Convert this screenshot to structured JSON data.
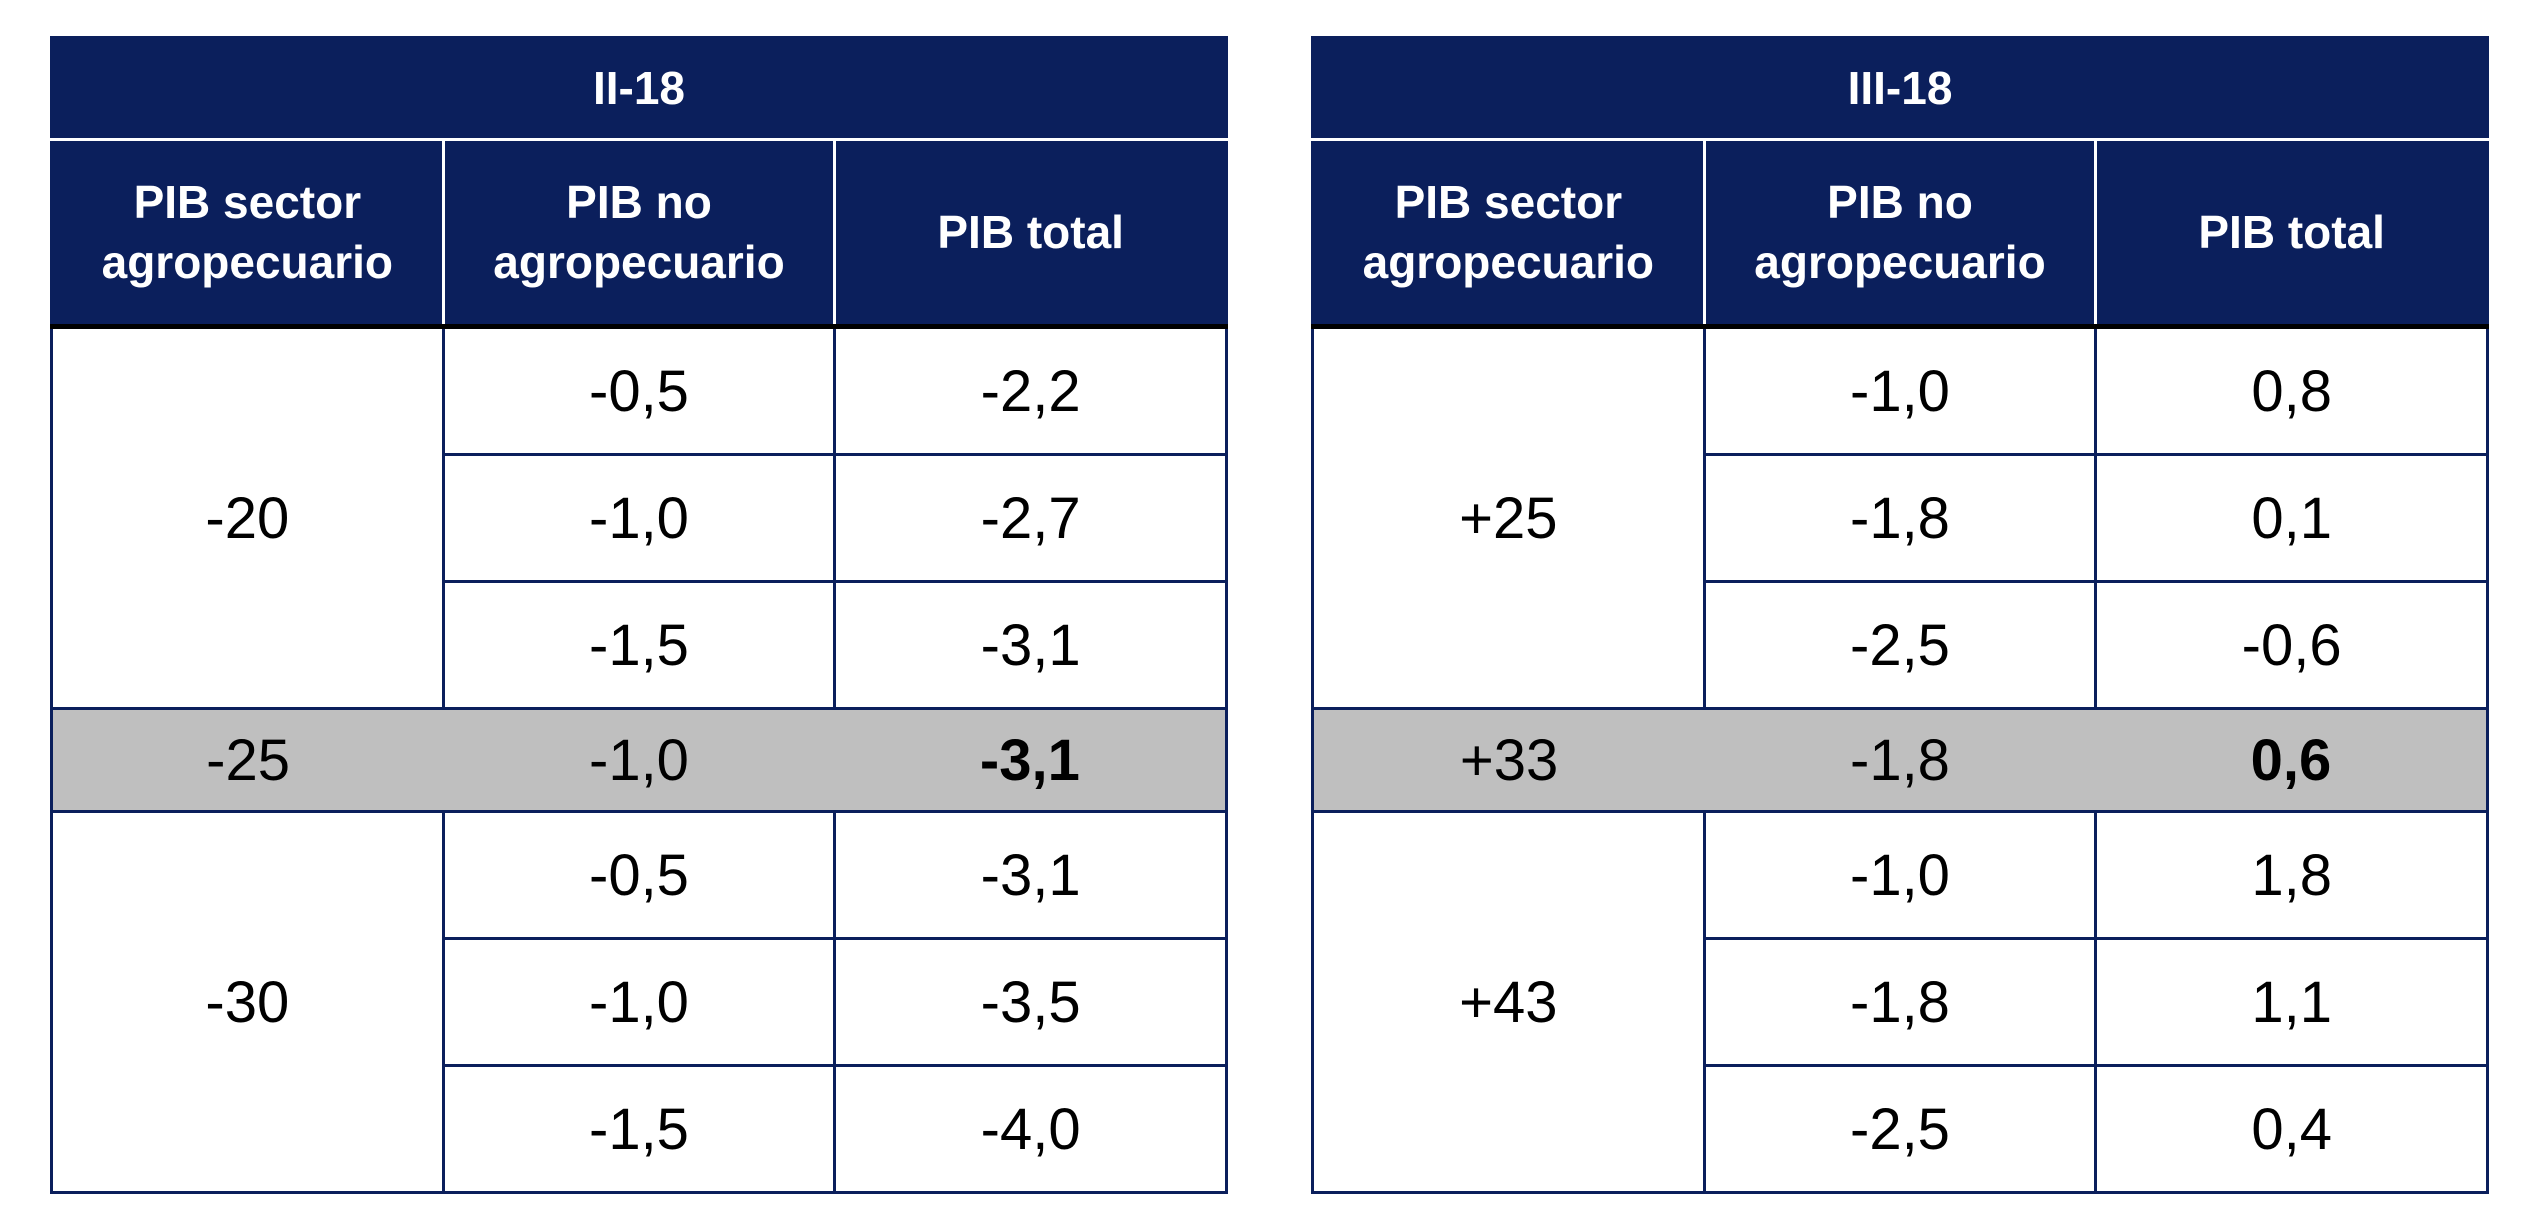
{
  "tables": [
    {
      "title": "II-18",
      "headers": [
        "PIB sector agropecuario",
        "PIB no agropecuario",
        "PIB total"
      ],
      "groups": [
        {
          "sector": "-20",
          "highlight": false,
          "rows": [
            [
              "-0,5",
              "-2,2"
            ],
            [
              "-1,0",
              "-2,7"
            ],
            [
              "-1,5",
              "-3,1"
            ]
          ]
        },
        {
          "sector": "-25",
          "highlight": true,
          "rows": [
            [
              "-1,0",
              "-3,1"
            ]
          ]
        },
        {
          "sector": "-30",
          "highlight": false,
          "rows": [
            [
              "-0,5",
              "-3,1"
            ],
            [
              "-1,0",
              "-3,5"
            ],
            [
              "-1,5",
              "-4,0"
            ]
          ]
        }
      ]
    },
    {
      "title": "III-18",
      "headers": [
        "PIB sector agropecuario",
        "PIB no agropecuario",
        "PIB total"
      ],
      "groups": [
        {
          "sector": "+25",
          "highlight": false,
          "rows": [
            [
              "-1,0",
              "0,8"
            ],
            [
              "-1,8",
              "0,1"
            ],
            [
              "-2,5",
              "-0,6"
            ]
          ]
        },
        {
          "sector": "+33",
          "highlight": true,
          "rows": [
            [
              "-1,8",
              "0,6"
            ]
          ]
        },
        {
          "sector": "+43",
          "highlight": false,
          "rows": [
            [
              "-1,0",
              "1,8"
            ],
            [
              "-1,8",
              "1,1"
            ],
            [
              "-2,5",
              "0,4"
            ]
          ]
        }
      ]
    }
  ]
}
